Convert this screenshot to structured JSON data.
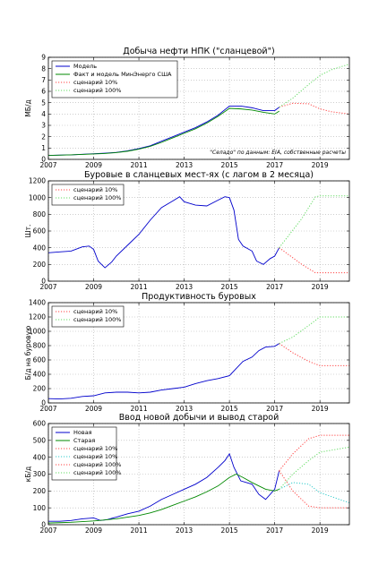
{
  "colors": {
    "blue": "#0000cc",
    "green": "#008800",
    "red": "#ff4444",
    "lightgreen": "#66dd66",
    "cyan": "#33cccc",
    "grid": "#b0b0b0"
  },
  "chart_data": [
    {
      "type": "line",
      "title": "Добыча нефти НПК (\"сланцевой\")",
      "xlabel": "",
      "ylabel": "МБ/д",
      "xlim": [
        2007,
        2020.3
      ],
      "ylim": [
        0,
        9
      ],
      "yticks": [
        0,
        1,
        2,
        3,
        4,
        5,
        6,
        7,
        8,
        9
      ],
      "xticks": [
        2007,
        2009,
        2011,
        2013,
        2015,
        2017,
        2019
      ],
      "grid": true,
      "legend_position": "top-left",
      "annotation": "\"Селадо\" по данным: EIA, собственные расчеты",
      "series": [
        {
          "name": "Модель",
          "style": "solid",
          "color": "blue",
          "x": [
            2007,
            2008,
            2009,
            2009.5,
            2010,
            2010.5,
            2011,
            2011.5,
            2012,
            2012.5,
            2013,
            2013.5,
            2014,
            2014.5,
            2015,
            2015.5,
            2016,
            2016.5,
            2017,
            2017.2
          ],
          "y": [
            0.35,
            0.4,
            0.5,
            0.55,
            0.62,
            0.75,
            0.95,
            1.2,
            1.6,
            2.0,
            2.4,
            2.8,
            3.3,
            3.9,
            4.7,
            4.7,
            4.55,
            4.3,
            4.3,
            4.6
          ]
        },
        {
          "name": "Факт и модель МинЭнерго США",
          "style": "solid",
          "color": "green",
          "x": [
            2007,
            2008,
            2009,
            2009.5,
            2010,
            2010.5,
            2011,
            2011.5,
            2012,
            2012.5,
            2013,
            2013.5,
            2014,
            2014.5,
            2015,
            2015.5,
            2016,
            2016.5,
            2017,
            2017.2
          ],
          "y": [
            0.35,
            0.4,
            0.48,
            0.52,
            0.6,
            0.72,
            0.9,
            1.15,
            1.5,
            1.9,
            2.3,
            2.7,
            3.2,
            3.8,
            4.5,
            4.45,
            4.35,
            4.15,
            4.0,
            4.25
          ]
        },
        {
          "name": "сценарий 10%",
          "style": "dotted",
          "color": "red",
          "x": [
            2017.2,
            2017.8,
            2018.5,
            2019,
            2019.5,
            2020.3
          ],
          "y": [
            4.6,
            4.95,
            4.9,
            4.45,
            4.2,
            4.0
          ]
        },
        {
          "name": "сценарий 100%",
          "style": "dotted",
          "color": "lightgreen",
          "x": [
            2017.2,
            2017.8,
            2018.5,
            2019,
            2019.5,
            2020.3
          ],
          "y": [
            4.6,
            5.4,
            6.6,
            7.4,
            7.9,
            8.4
          ]
        }
      ]
    },
    {
      "type": "line",
      "title": "Буровые в сланцевых мест-ях (с лагом в 2 месяца)",
      "xlabel": "",
      "ylabel": "Шт.",
      "xlim": [
        2007,
        2020.3
      ],
      "ylim": [
        0,
        1200
      ],
      "yticks": [
        0,
        200,
        400,
        600,
        800,
        1000,
        1200
      ],
      "xticks": [
        2007,
        2009,
        2011,
        2013,
        2015,
        2017,
        2019
      ],
      "grid": true,
      "legend_position": "top-left",
      "series": [
        {
          "name": "",
          "style": "solid",
          "color": "blue",
          "x": [
            2007,
            2007.5,
            2008,
            2008.5,
            2008.8,
            2009,
            2009.2,
            2009.5,
            2009.8,
            2010,
            2010.5,
            2011,
            2011.5,
            2012,
            2012.5,
            2012.8,
            2013,
            2013.5,
            2014,
            2014.5,
            2014.8,
            2015,
            2015.2,
            2015.4,
            2015.6,
            2016,
            2016.2,
            2016.5,
            2016.8,
            2017,
            2017.2
          ],
          "y": [
            340,
            350,
            360,
            410,
            420,
            380,
            240,
            160,
            230,
            300,
            430,
            560,
            730,
            880,
            960,
            1010,
            950,
            910,
            900,
            970,
            1010,
            1000,
            850,
            500,
            420,
            360,
            240,
            200,
            270,
            300,
            400
          ]
        },
        {
          "name": "сценарий 10%",
          "style": "dotted",
          "color": "red",
          "x": [
            2017.2,
            2018.2,
            2018.8,
            2019,
            2020.3
          ],
          "y": [
            400,
            200,
            100,
            100,
            100
          ]
        },
        {
          "name": "сценарий 100%",
          "style": "dotted",
          "color": "lightgreen",
          "x": [
            2017.2,
            2018.2,
            2018.8,
            2019,
            2020.3
          ],
          "y": [
            400,
            750,
            1010,
            1020,
            1020
          ]
        }
      ]
    },
    {
      "type": "line",
      "title": "Продуктивность буровых",
      "xlabel": "",
      "ylabel": "Б/д на буровую",
      "xlim": [
        2007,
        2020.3
      ],
      "ylim": [
        0,
        1400
      ],
      "yticks": [
        0,
        200,
        400,
        600,
        800,
        1000,
        1200,
        1400
      ],
      "xticks": [
        2007,
        2009,
        2011,
        2013,
        2015,
        2017,
        2019
      ],
      "grid": true,
      "legend_position": "top-left",
      "series": [
        {
          "name": "",
          "style": "solid",
          "color": "blue",
          "x": [
            2007,
            2007.5,
            2008,
            2008.5,
            2009,
            2009.5,
            2010,
            2010.5,
            2011,
            2011.5,
            2012,
            2012.5,
            2013,
            2013.5,
            2014,
            2014.5,
            2015,
            2015.3,
            2015.6,
            2016,
            2016.3,
            2016.6,
            2017,
            2017.2
          ],
          "y": [
            60,
            55,
            65,
            90,
            100,
            140,
            150,
            150,
            140,
            150,
            180,
            200,
            220,
            270,
            310,
            340,
            380,
            480,
            580,
            640,
            730,
            780,
            790,
            830
          ]
        },
        {
          "name": "сценарий 10%",
          "style": "dotted",
          "color": "red",
          "x": [
            2017.2,
            2017.8,
            2018.5,
            2019,
            2020.3
          ],
          "y": [
            830,
            700,
            580,
            520,
            520
          ]
        },
        {
          "name": "сценарий 100%",
          "style": "dotted",
          "color": "lightgreen",
          "x": [
            2017.2,
            2017.8,
            2018.5,
            2019,
            2020.3
          ],
          "y": [
            830,
            920,
            1080,
            1200,
            1200
          ]
        }
      ]
    },
    {
      "type": "line",
      "title": "Ввод новой добычи и вывод старой",
      "xlabel": "",
      "ylabel": "кБ/д",
      "xlim": [
        2007,
        2020.3
      ],
      "ylim": [
        0,
        600
      ],
      "yticks": [
        0,
        100,
        200,
        300,
        400,
        500,
        600
      ],
      "xticks": [
        2007,
        2009,
        2011,
        2013,
        2015,
        2017,
        2019
      ],
      "grid": true,
      "legend_position": "top-left",
      "series": [
        {
          "name": "Новая",
          "style": "solid",
          "color": "blue",
          "x": [
            2007,
            2007.5,
            2008,
            2008.5,
            2009,
            2009.3,
            2009.6,
            2010,
            2010.5,
            2011,
            2011.5,
            2012,
            2012.5,
            2013,
            2013.5,
            2014,
            2014.5,
            2014.8,
            2015,
            2015.2,
            2015.5,
            2016,
            2016.3,
            2016.6,
            2017,
            2017.2
          ],
          "y": [
            20,
            20,
            25,
            35,
            40,
            25,
            30,
            45,
            65,
            80,
            110,
            150,
            180,
            210,
            240,
            280,
            340,
            380,
            420,
            340,
            260,
            240,
            180,
            150,
            210,
            320
          ]
        },
        {
          "name": "Старая",
          "style": "solid",
          "color": "green",
          "x": [
            2007,
            2007.5,
            2008,
            2008.5,
            2009,
            2009.5,
            2010,
            2010.5,
            2011,
            2011.5,
            2012,
            2012.5,
            2013,
            2013.5,
            2014,
            2014.5,
            2015,
            2015.3,
            2015.6,
            2016,
            2016.3,
            2016.6,
            2017,
            2017.2
          ],
          "y": [
            10,
            12,
            14,
            18,
            22,
            28,
            35,
            45,
            55,
            70,
            90,
            115,
            140,
            165,
            195,
            230,
            280,
            300,
            280,
            250,
            230,
            210,
            200,
            210
          ]
        },
        {
          "name": "сценарий 10%",
          "style": "dotted",
          "color": "red",
          "x": [
            2017.2,
            2017.8,
            2018.5,
            2019,
            2020.3
          ],
          "y": [
            320,
            200,
            110,
            100,
            100
          ]
        },
        {
          "name": "сценарий 10%",
          "style": "dotted",
          "color": "cyan",
          "x": [
            2017.2,
            2017.8,
            2018.5,
            2019,
            2020.3
          ],
          "y": [
            210,
            250,
            240,
            190,
            130
          ]
        },
        {
          "name": "сценарий 100%",
          "style": "dotted",
          "color": "red",
          "x": [
            2017.2,
            2017.8,
            2018.5,
            2019,
            2020.3
          ],
          "y": [
            320,
            420,
            510,
            530,
            530
          ]
        },
        {
          "name": "сценарий 100%",
          "style": "dotted",
          "color": "lightgreen",
          "x": [
            2017.2,
            2017.8,
            2018.5,
            2019,
            2020.3
          ],
          "y": [
            210,
            300,
            380,
            430,
            460
          ]
        }
      ]
    }
  ]
}
